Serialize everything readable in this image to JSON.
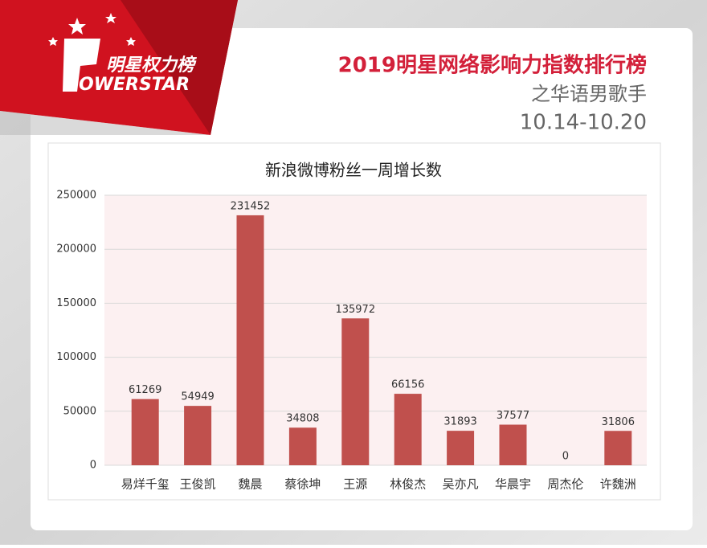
{
  "header": {
    "logo_text": "明星权力榜",
    "logo_brand": "OWERSTAR",
    "title": "2019明星网络影响力指数排行榜",
    "subtitle": "之华语男歌手",
    "date_range": "10.14-10.20"
  },
  "chart_data": {
    "type": "bar",
    "title": "新浪微博粉丝一周增长数",
    "categories": [
      "易烊千玺",
      "王俊凯",
      "魏晨",
      "蔡徐坤",
      "王源",
      "林俊杰",
      "吴亦凡",
      "华晨宇",
      "周杰伦",
      "许魏洲"
    ],
    "values": [
      61269,
      54949,
      231452,
      34808,
      135972,
      66156,
      31893,
      37577,
      0,
      31806
    ],
    "color": "#c0504d",
    "ylim": [
      0,
      250000
    ],
    "yticks": [
      0,
      50000,
      100000,
      150000,
      200000,
      250000
    ],
    "grid": true
  }
}
